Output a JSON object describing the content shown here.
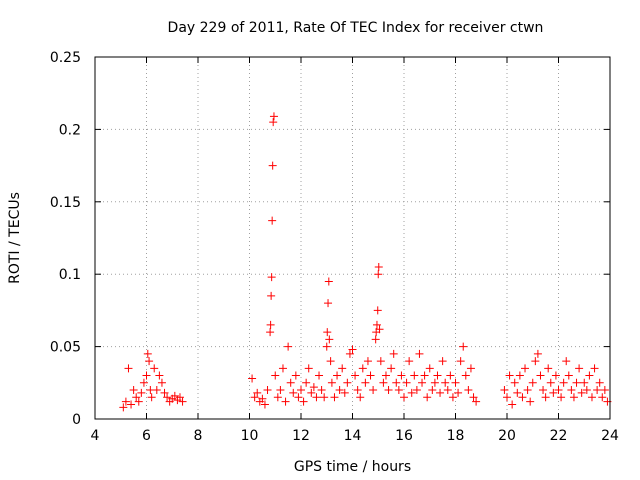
{
  "chart_data": {
    "type": "scatter",
    "title": "Day 229 of 2011, Rate Of TEC Index for receiver ctwn",
    "xlabel": "GPS time / hours",
    "ylabel": "ROTI / TECUs",
    "xlim": [
      4,
      24
    ],
    "ylim": [
      0,
      0.25
    ],
    "xticks": [
      4,
      6,
      8,
      10,
      12,
      14,
      16,
      18,
      20,
      22,
      24
    ],
    "xtick_labels": [
      "4",
      "6",
      "8",
      "10",
      "12",
      "14",
      "16",
      "18",
      "20",
      "22",
      "24"
    ],
    "yticks": [
      0,
      0.05,
      0.1,
      0.15,
      0.2,
      0.25
    ],
    "ytick_labels": [
      "0",
      "0.05",
      "0.1",
      "0.15",
      "0.2",
      "0.25"
    ],
    "grid": true,
    "marker": "+",
    "color": "#ff0000",
    "series": [
      {
        "name": "ROTI",
        "x": [
          5.1,
          5.2,
          5.3,
          5.4,
          5.5,
          5.6,
          5.7,
          5.8,
          5.9,
          6.0,
          6.05,
          6.1,
          6.15,
          6.2,
          6.3,
          6.4,
          6.5,
          6.6,
          6.7,
          6.8,
          6.9,
          7.0,
          7.1,
          7.2,
          7.3,
          7.4,
          10.1,
          10.2,
          10.3,
          10.4,
          10.5,
          10.6,
          10.7,
          10.8,
          10.82,
          10.84,
          10.86,
          10.88,
          10.9,
          10.92,
          10.95,
          11.0,
          11.1,
          11.2,
          11.3,
          11.4,
          11.5,
          11.6,
          11.7,
          11.8,
          11.9,
          12.0,
          12.1,
          12.2,
          12.3,
          12.4,
          12.5,
          12.6,
          12.7,
          12.8,
          12.9,
          13.0,
          13.02,
          13.05,
          13.08,
          13.1,
          13.15,
          13.2,
          13.3,
          13.4,
          13.5,
          13.6,
          13.7,
          13.8,
          13.9,
          14.0,
          14.1,
          14.2,
          14.3,
          14.4,
          14.5,
          14.6,
          14.7,
          14.8,
          14.9,
          14.92,
          14.95,
          14.98,
          15.0,
          15.02,
          15.05,
          15.1,
          15.2,
          15.3,
          15.4,
          15.5,
          15.6,
          15.7,
          15.8,
          15.9,
          16.0,
          16.1,
          16.2,
          16.3,
          16.4,
          16.5,
          16.6,
          16.7,
          16.8,
          16.9,
          17.0,
          17.1,
          17.2,
          17.3,
          17.4,
          17.5,
          17.6,
          17.7,
          17.8,
          17.9,
          18.0,
          18.1,
          18.2,
          18.3,
          18.4,
          18.5,
          18.6,
          18.7,
          18.8,
          19.9,
          20.0,
          20.1,
          20.2,
          20.3,
          20.4,
          20.5,
          20.6,
          20.7,
          20.8,
          20.9,
          21.0,
          21.1,
          21.2,
          21.3,
          21.4,
          21.5,
          21.6,
          21.7,
          21.8,
          21.9,
          22.0,
          22.1,
          22.2,
          22.3,
          22.4,
          22.5,
          22.6,
          22.7,
          22.8,
          22.9,
          23.0,
          23.1,
          23.2,
          23.3,
          23.4,
          23.5,
          23.6,
          23.7,
          23.8,
          23.9
        ],
        "y": [
          0.008,
          0.012,
          0.035,
          0.01,
          0.02,
          0.015,
          0.012,
          0.018,
          0.025,
          0.03,
          0.045,
          0.04,
          0.02,
          0.015,
          0.035,
          0.02,
          0.03,
          0.025,
          0.018,
          0.015,
          0.012,
          0.014,
          0.016,
          0.013,
          0.015,
          0.012,
          0.028,
          0.015,
          0.018,
          0.012,
          0.014,
          0.01,
          0.02,
          0.06,
          0.065,
          0.085,
          0.098,
          0.137,
          0.175,
          0.205,
          0.209,
          0.03,
          0.015,
          0.02,
          0.035,
          0.012,
          0.05,
          0.025,
          0.018,
          0.03,
          0.015,
          0.02,
          0.012,
          0.025,
          0.035,
          0.018,
          0.022,
          0.015,
          0.03,
          0.02,
          0.015,
          0.05,
          0.06,
          0.08,
          0.095,
          0.055,
          0.04,
          0.025,
          0.015,
          0.03,
          0.02,
          0.035,
          0.018,
          0.025,
          0.045,
          0.048,
          0.03,
          0.02,
          0.015,
          0.035,
          0.025,
          0.04,
          0.03,
          0.02,
          0.055,
          0.06,
          0.065,
          0.075,
          0.1,
          0.105,
          0.062,
          0.04,
          0.025,
          0.03,
          0.02,
          0.035,
          0.045,
          0.025,
          0.02,
          0.03,
          0.015,
          0.025,
          0.04,
          0.018,
          0.03,
          0.02,
          0.045,
          0.025,
          0.03,
          0.015,
          0.035,
          0.02,
          0.025,
          0.03,
          0.018,
          0.04,
          0.025,
          0.02,
          0.03,
          0.015,
          0.025,
          0.018,
          0.04,
          0.05,
          0.03,
          0.02,
          0.035,
          0.015,
          0.012,
          0.02,
          0.015,
          0.03,
          0.01,
          0.025,
          0.018,
          0.03,
          0.015,
          0.035,
          0.02,
          0.012,
          0.025,
          0.04,
          0.045,
          0.03,
          0.02,
          0.015,
          0.035,
          0.025,
          0.018,
          0.03,
          0.02,
          0.015,
          0.025,
          0.04,
          0.03,
          0.02,
          0.015,
          0.025,
          0.035,
          0.018,
          0.025,
          0.02,
          0.03,
          0.015,
          0.035,
          0.02,
          0.025,
          0.015,
          0.02,
          0.012
        ]
      }
    ]
  }
}
